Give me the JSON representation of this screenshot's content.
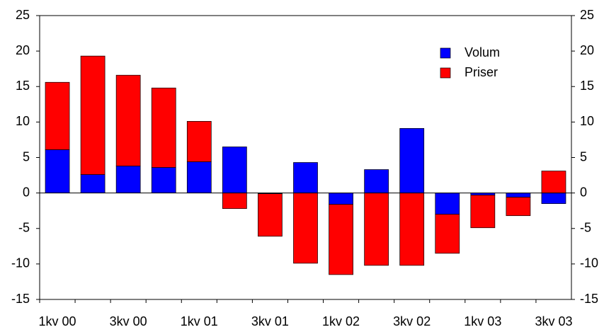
{
  "chart_data": {
    "type": "stacked_bar",
    "categories": [
      "1kv 00",
      null,
      "3kv 00",
      null,
      "1kv 01",
      null,
      "3kv 01",
      null,
      "1kv 02",
      null,
      "3kv 02",
      null,
      "1kv 03",
      null,
      "3kv 03"
    ],
    "series": [
      {
        "name": "Volum",
        "color": "#0000ff",
        "values": [
          6.1,
          2.6,
          3.8,
          3.6,
          4.4,
          6.5,
          -0.1,
          4.3,
          -1.6,
          3.3,
          9.1,
          -3.0,
          -0.3,
          -0.6,
          -1.5
        ]
      },
      {
        "name": "Priser",
        "color": "#ff0000",
        "values": [
          9.5,
          16.7,
          12.8,
          11.2,
          5.7,
          -2.2,
          -6.0,
          -9.9,
          -9.9,
          -10.2,
          -10.2,
          -5.5,
          -4.6,
          -2.6,
          3.1
        ]
      }
    ],
    "ylim": [
      -15,
      25
    ],
    "yticks": [
      -15,
      -10,
      -5,
      0,
      5,
      10,
      15,
      20,
      25
    ],
    "y2lim": [
      -15,
      25
    ],
    "y2ticks": [
      -15,
      -10,
      -5,
      0,
      5,
      10,
      15,
      20,
      25
    ],
    "legend": "upper right",
    "grid": false
  }
}
